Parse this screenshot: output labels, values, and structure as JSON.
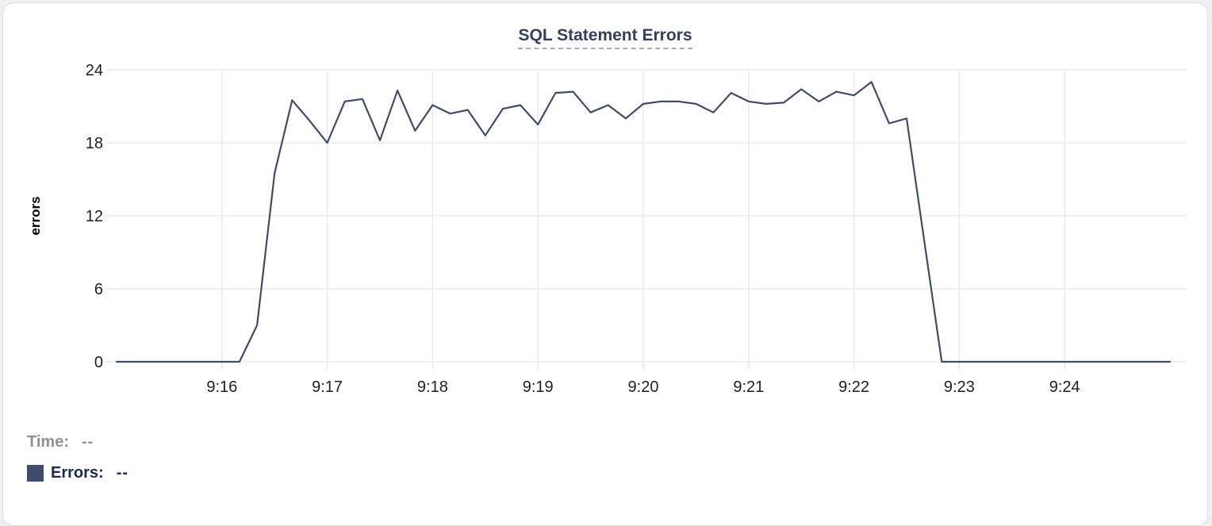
{
  "chart_data": {
    "type": "line",
    "title": "SQL Statement Errors",
    "xlabel": "",
    "ylabel": "errors",
    "ylim": [
      0,
      24
    ],
    "y_ticks": [
      0,
      6,
      12,
      18,
      24
    ],
    "x_tick_labels": [
      "9:16",
      "9:17",
      "9:18",
      "9:19",
      "9:20",
      "9:21",
      "9:22",
      "9:23",
      "9:24"
    ],
    "x_range": [
      "9:15:00",
      "9:25:00"
    ],
    "sample_interval_seconds": 10,
    "grid": true,
    "legend_position": "bottom-left",
    "series": [
      {
        "name": "Errors",
        "color": "#3e4d6b",
        "x": [
          "9:15:00",
          "9:15:10",
          "9:15:20",
          "9:15:30",
          "9:15:40",
          "9:15:50",
          "9:16:00",
          "9:16:10",
          "9:16:20",
          "9:16:30",
          "9:16:40",
          "9:16:50",
          "9:17:00",
          "9:17:10",
          "9:17:20",
          "9:17:30",
          "9:17:40",
          "9:17:50",
          "9:18:00",
          "9:18:10",
          "9:18:20",
          "9:18:30",
          "9:18:40",
          "9:18:50",
          "9:19:00",
          "9:19:10",
          "9:19:20",
          "9:19:30",
          "9:19:40",
          "9:19:50",
          "9:20:00",
          "9:20:10",
          "9:20:20",
          "9:20:30",
          "9:20:40",
          "9:20:50",
          "9:21:00",
          "9:21:10",
          "9:21:20",
          "9:21:30",
          "9:21:40",
          "9:21:50",
          "9:22:00",
          "9:22:10",
          "9:22:20",
          "9:22:30",
          "9:22:40",
          "9:22:50",
          "9:23:00",
          "9:23:10",
          "9:23:20",
          "9:23:30",
          "9:23:40",
          "9:23:50",
          "9:24:00",
          "9:24:10",
          "9:24:20",
          "9:24:30",
          "9:24:40",
          "9:24:50",
          "9:25:00"
        ],
        "values": [
          0,
          0,
          0,
          0,
          0,
          0,
          0,
          0,
          3,
          15.5,
          21.5,
          19.8,
          18,
          21.4,
          21.6,
          18.2,
          22.3,
          19,
          21.1,
          20.4,
          20.7,
          18.6,
          20.8,
          21.1,
          19.5,
          22.1,
          22.2,
          20.5,
          21.1,
          20,
          21.2,
          21.4,
          21.4,
          21.2,
          20.5,
          22.1,
          21.4,
          21.2,
          21.3,
          22.4,
          21.4,
          22.2,
          21.9,
          23,
          19.6,
          20,
          10,
          0,
          0,
          0,
          0,
          0,
          0,
          0,
          0,
          0,
          0,
          0,
          0,
          0,
          0
        ]
      }
    ]
  },
  "legend": {
    "time_label": "Time:",
    "time_value": "--",
    "errors_label": "Errors:",
    "errors_value": "--"
  },
  "colors": {
    "series": "#3e4d6b",
    "title": "#33415e",
    "grid": "#ebebeb",
    "axis_text": "#1e1f21",
    "legend_time": "#8e9196",
    "legend_errors": "#1b2a55"
  }
}
